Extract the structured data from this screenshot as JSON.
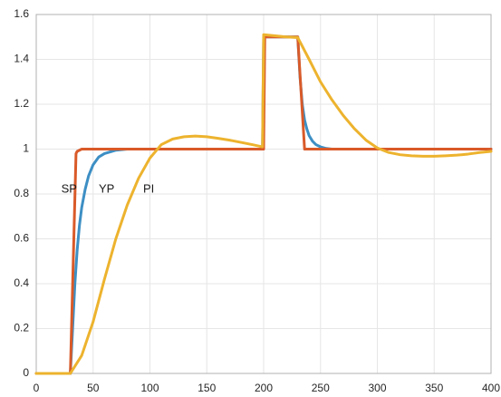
{
  "chart_data": {
    "type": "line",
    "title": "",
    "xlabel": "",
    "ylabel": "",
    "xlim": [
      0,
      400
    ],
    "ylim": [
      0,
      1.6
    ],
    "x_ticks": [
      0,
      50,
      100,
      150,
      200,
      250,
      300,
      350,
      400
    ],
    "y_ticks": [
      0,
      0.2,
      0.4,
      0.6,
      0.8,
      1,
      1.2,
      1.4,
      1.6
    ],
    "x_tick_labels": [
      "0",
      "50",
      "100",
      "150",
      "200",
      "250",
      "300",
      "350",
      "400"
    ],
    "y_tick_labels": [
      "0",
      "0.2",
      "0.4",
      "0.6",
      "0.8",
      "1",
      "1.2",
      "1.4",
      "1.6"
    ],
    "grid": true,
    "legend": "none",
    "series": [
      {
        "name": "YP",
        "color": "#3d8fc4",
        "label_at": [
          55,
          0.82
        ],
        "x": [
          0,
          30,
          32,
          34,
          36,
          38,
          40,
          43,
          46,
          50,
          55,
          60,
          70,
          80,
          90,
          100,
          150,
          199,
          200,
          230,
          232,
          234,
          236,
          238,
          240,
          243,
          246,
          250,
          255,
          260,
          270,
          300,
          400
        ],
        "y": [
          0,
          0,
          0.2,
          0.4,
          0.55,
          0.66,
          0.74,
          0.82,
          0.88,
          0.93,
          0.965,
          0.98,
          0.995,
          1.0,
          1.0,
          1.0,
          1.0,
          1.0,
          1.5,
          1.5,
          1.32,
          1.2,
          1.13,
          1.09,
          1.06,
          1.035,
          1.02,
          1.01,
          1.003,
          1.0,
          1.0,
          1.0,
          1.0
        ]
      },
      {
        "name": "SP",
        "color": "#d95a29",
        "label_at": [
          22,
          0.82
        ],
        "x": [
          0,
          30,
          35,
          36,
          40,
          200,
          201,
          230,
          236,
          240,
          400
        ],
        "y": [
          0,
          0,
          0.98,
          0.99,
          1.0,
          1.0,
          1.5,
          1.5,
          1.0,
          1.0,
          1.0
        ]
      },
      {
        "name": "PI",
        "color": "#edb32e",
        "label_at": [
          94,
          0.82
        ],
        "x": [
          0,
          30,
          40,
          50,
          60,
          70,
          80,
          90,
          100,
          110,
          120,
          130,
          140,
          150,
          160,
          170,
          180,
          190,
          199,
          200,
          210,
          220,
          230,
          240,
          250,
          260,
          270,
          280,
          290,
          300,
          310,
          320,
          330,
          340,
          350,
          360,
          370,
          380,
          390,
          400
        ],
        "y": [
          0,
          0,
          0.08,
          0.23,
          0.42,
          0.6,
          0.75,
          0.87,
          0.96,
          1.02,
          1.045,
          1.055,
          1.058,
          1.055,
          1.048,
          1.04,
          1.03,
          1.02,
          1.01,
          1.51,
          1.505,
          1.5,
          1.497,
          1.4,
          1.3,
          1.22,
          1.15,
          1.09,
          1.04,
          1.005,
          0.985,
          0.975,
          0.97,
          0.968,
          0.968,
          0.97,
          0.973,
          0.978,
          0.985,
          0.99
        ]
      }
    ]
  }
}
